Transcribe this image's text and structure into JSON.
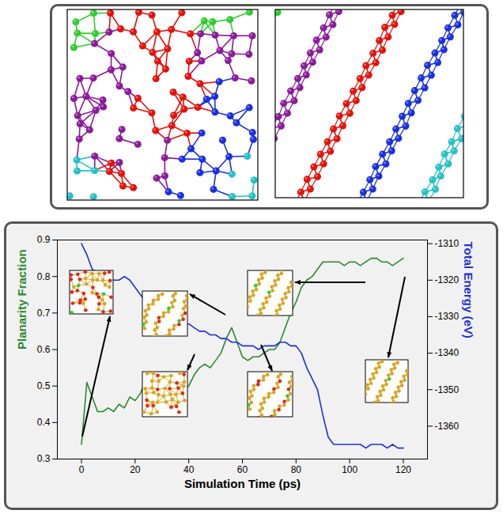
{
  "chart_data": {
    "type": "line",
    "xlabel": "Simulation Time (ps)",
    "x": [
      0,
      2,
      4,
      6,
      8,
      10,
      12,
      14,
      16,
      18,
      20,
      22,
      24,
      26,
      28,
      30,
      32,
      34,
      36,
      38,
      40,
      42,
      44,
      46,
      48,
      50,
      52,
      54,
      56,
      58,
      60,
      62,
      64,
      66,
      68,
      70,
      72,
      74,
      76,
      78,
      80,
      82,
      84,
      86,
      88,
      90,
      92,
      94,
      96,
      98,
      100,
      102,
      104,
      106,
      108,
      110,
      112,
      114,
      116,
      118,
      120
    ],
    "xlim": [
      -9,
      129
    ],
    "xticks": [
      0,
      20,
      40,
      60,
      80,
      100,
      120
    ],
    "ylim": [
      0.3,
      0.9
    ],
    "yticks": [
      0.3,
      0.4,
      0.5,
      0.6,
      0.7,
      0.8,
      0.9
    ],
    "y2lim": [
      -1369,
      -1309
    ],
    "y2ticks": [
      -1360,
      -1350,
      -1340,
      -1330,
      -1320,
      -1310
    ],
    "series": [
      {
        "name": "Planarity Fraction",
        "color": "#2a8a2a",
        "values": [
          0.34,
          0.51,
          0.47,
          0.43,
          0.43,
          0.44,
          0.43,
          0.45,
          0.44,
          0.47,
          0.46,
          0.48,
          0.52,
          0.49,
          0.51,
          0.5,
          0.52,
          0.53,
          0.51,
          0.49,
          0.5,
          0.53,
          0.55,
          0.56,
          0.55,
          0.57,
          0.59,
          0.63,
          0.66,
          0.62,
          0.58,
          0.57,
          0.58,
          0.58,
          0.59,
          0.6,
          0.6,
          0.62,
          0.66,
          0.7,
          0.73,
          0.77,
          0.79,
          0.8,
          0.82,
          0.84,
          0.84,
          0.84,
          0.84,
          0.83,
          0.84,
          0.84,
          0.83,
          0.84,
          0.85,
          0.85,
          0.84,
          0.84,
          0.83,
          0.84,
          0.85
        ]
      },
      {
        "name": "Total Energy (eV)",
        "color": "#1f2fd8",
        "axis": "y2",
        "values": [
          -1310,
          -1313,
          -1317,
          -1318,
          -1318,
          -1319,
          -1320,
          -1320,
          -1319,
          -1320,
          -1322,
          -1324,
          -1326,
          -1327,
          -1328,
          -1329,
          -1330,
          -1330,
          -1331,
          -1332,
          -1332,
          -1333,
          -1334,
          -1334,
          -1335,
          -1335,
          -1336,
          -1336,
          -1337,
          -1337,
          -1338,
          -1338,
          -1338,
          -1339,
          -1338,
          -1338,
          -1338,
          -1337,
          -1337,
          -1338,
          -1338,
          -1340,
          -1344,
          -1347,
          -1350,
          -1357,
          -1363,
          -1365,
          -1365,
          -1365,
          -1365,
          -1365,
          -1365,
          -1366,
          -1365,
          -1365,
          -1365,
          -1366,
          -1365,
          -1366,
          -1366
        ]
      }
    ]
  }
}
